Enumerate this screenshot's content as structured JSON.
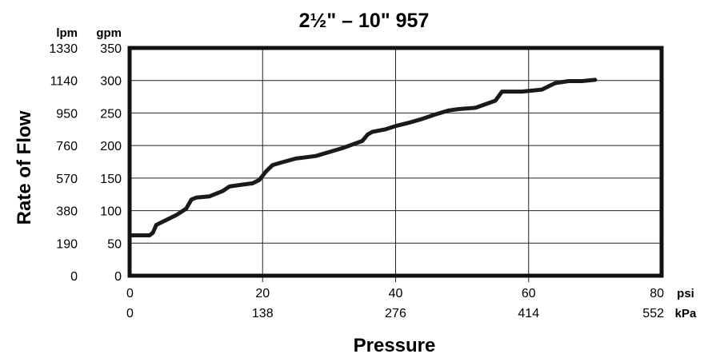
{
  "chart_data": {
    "type": "line",
    "title": "2½\" – 10\" 957",
    "xlabel": "Pressure",
    "ylabel": "Rate of Flow",
    "x_unit_primary": "psi",
    "x_unit_secondary": "kPa",
    "y_unit_primary": "gpm",
    "y_unit_secondary": "lpm",
    "xlim": [
      0,
      80
    ],
    "ylim": [
      0,
      350
    ],
    "grid": true,
    "x_ticks": [
      {
        "psi": "0",
        "kpa": "0"
      },
      {
        "psi": "20",
        "kpa": "138"
      },
      {
        "psi": "40",
        "kpa": "276"
      },
      {
        "psi": "60",
        "kpa": "414"
      },
      {
        "psi": "80",
        "kpa": "552"
      }
    ],
    "y_ticks": [
      {
        "gpm": "0",
        "lpm": "0"
      },
      {
        "gpm": "50",
        "lpm": "190"
      },
      {
        "gpm": "100",
        "lpm": "380"
      },
      {
        "gpm": "150",
        "lpm": "570"
      },
      {
        "gpm": "200",
        "lpm": "760"
      },
      {
        "gpm": "250",
        "lpm": "950"
      },
      {
        "gpm": "300",
        "lpm": "1140"
      },
      {
        "gpm": "350",
        "lpm": "1330"
      }
    ],
    "series": [
      {
        "x": [
          0,
          3,
          3.5,
          4,
          5,
          7,
          8.5,
          9.3,
          10,
          12,
          14,
          15,
          17,
          18.5,
          19.5,
          20.5,
          21.5,
          22.5,
          25,
          28,
          32,
          35,
          35.8,
          36.5,
          38.5,
          40,
          42,
          44,
          46,
          48,
          49.5,
          52,
          55,
          56,
          59,
          62,
          63,
          64,
          66,
          68,
          70
        ],
        "y": [
          62,
          62,
          66,
          78,
          83,
          93,
          103,
          117,
          120,
          122,
          130,
          137,
          140,
          142,
          147,
          160,
          170,
          173,
          180,
          184,
          196,
          207,
          217,
          221,
          225,
          230,
          235,
          241,
          248,
          254,
          256,
          258,
          269,
          283,
          283,
          286,
          291,
          296,
          299,
          299,
          301
        ],
        "color": "#1a1a1a"
      }
    ]
  }
}
